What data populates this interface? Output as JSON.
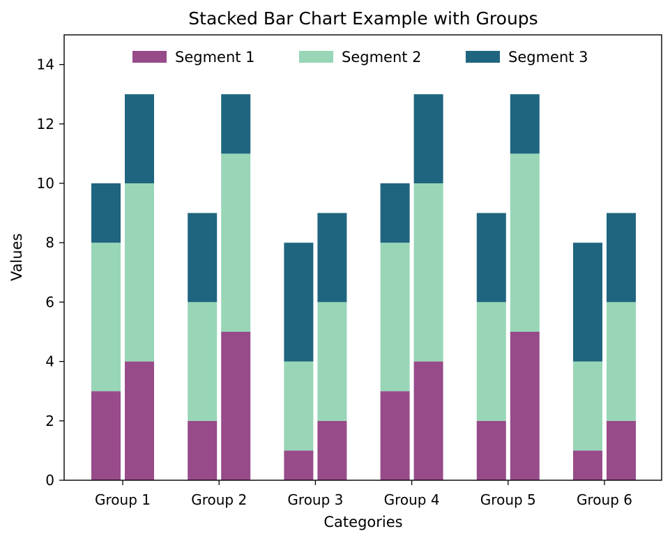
{
  "chart_data": {
    "type": "bar",
    "stacked": true,
    "grouped": true,
    "title": "Stacked Bar Chart Example with Groups",
    "xlabel": "Categories",
    "ylabel": "Values",
    "ylim": [
      0,
      15
    ],
    "yticks": [
      0,
      2,
      4,
      6,
      8,
      10,
      12,
      14
    ],
    "grid": false,
    "legend_position": "top-center",
    "categories": [
      "Group 1",
      "Group 2",
      "Group 3",
      "Group 4",
      "Group 5",
      "Group 6"
    ],
    "series": [
      {
        "name": "Segment 1",
        "color": "#974b89",
        "values": [
          [
            3,
            4
          ],
          [
            2,
            5
          ],
          [
            1,
            2
          ],
          [
            3,
            4
          ],
          [
            2,
            5
          ],
          [
            1,
            2
          ]
        ]
      },
      {
        "name": "Segment 2",
        "color": "#98d6b7",
        "values": [
          [
            5,
            6
          ],
          [
            4,
            6
          ],
          [
            3,
            4
          ],
          [
            5,
            6
          ],
          [
            4,
            6
          ],
          [
            3,
            4
          ]
        ]
      },
      {
        "name": "Segment 3",
        "color": "#1f657f",
        "values": [
          [
            2,
            3
          ],
          [
            3,
            2
          ],
          [
            4,
            3
          ],
          [
            2,
            3
          ],
          [
            3,
            2
          ],
          [
            4,
            3
          ]
        ]
      }
    ]
  }
}
